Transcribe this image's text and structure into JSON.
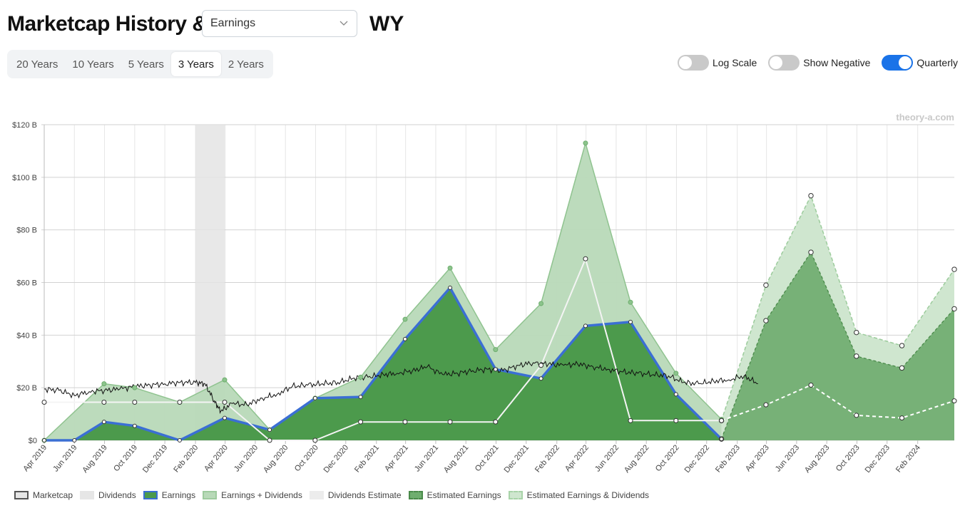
{
  "header": {
    "title": "Marketcap History &",
    "dropdown_value": "Earnings",
    "ticker": "WY"
  },
  "range_buttons": [
    {
      "label": "20 Years",
      "active": false
    },
    {
      "label": "10 Years",
      "active": false
    },
    {
      "label": "5 Years",
      "active": false
    },
    {
      "label": "3 Years",
      "active": true
    },
    {
      "label": "2 Years",
      "active": false
    }
  ],
  "toggles": [
    {
      "label": "Log Scale",
      "on": false
    },
    {
      "label": "Show Negative",
      "on": false
    },
    {
      "label": "Quarterly",
      "on": true
    }
  ],
  "watermark": "theory-a.com",
  "legend": [
    {
      "label": "Marketcap",
      "fill": "#e6e6e6",
      "border": "#555555",
      "dashed": false
    },
    {
      "label": "Dividends",
      "fill": "#e6e6e6",
      "border": "#e6e6e6",
      "dashed": false
    },
    {
      "label": "Earnings",
      "fill": "#4c9a4c",
      "border": "#3b6fd4",
      "dashed": false
    },
    {
      "label": "Earnings + Dividends",
      "fill": "#b8d9b8",
      "border": "#9ecb9e",
      "dashed": false
    },
    {
      "label": "Dividends Estimate",
      "fill": "#ececec",
      "border": "#ececec",
      "dashed": false
    },
    {
      "label": "Estimated Earnings",
      "fill": "#6fae6f",
      "border": "#4a8a4a",
      "dashed": true
    },
    {
      "label": "Estimated Earnings & Dividends",
      "fill": "#cfe6cf",
      "border": "#a8d3a8",
      "dashed": true
    }
  ],
  "colors": {
    "earnings_fill": "#4c9a4c",
    "earnings_line": "#3b6fd4",
    "ed_fill": "#b8d9b8",
    "ed_line": "#8fc38f",
    "est_fill": "#72ae72",
    "est_ed_fill": "#cfe6cf",
    "marketcap_line": "#111111",
    "dividend_line": "#f4f4f4",
    "grid": "#dddddd"
  },
  "chart_data": {
    "type": "area",
    "y_ticks": [
      "$0",
      "$20 B",
      "$40 B",
      "$60 B",
      "$80 B",
      "$100 B",
      "$120 B"
    ],
    "ylim": [
      0,
      120
    ],
    "xlim": [
      "2019-04-01",
      "2024-04-15"
    ],
    "x_tick_labels": [
      {
        "date": "2019-04-01",
        "label": "Apr 2019"
      },
      {
        "date": "2019-06-01",
        "label": "Jun 2019"
      },
      {
        "date": "2019-08-01",
        "label": "Aug 2019"
      },
      {
        "date": "2019-10-01",
        "label": "Oct 2019"
      },
      {
        "date": "2019-12-01",
        "label": "Dec 2019"
      },
      {
        "date": "2020-02-01",
        "label": "Feb 2020"
      },
      {
        "date": "2020-04-01",
        "label": "Apr 2020"
      },
      {
        "date": "2020-06-01",
        "label": "Jun 2020"
      },
      {
        "date": "2020-08-01",
        "label": "Aug 2020"
      },
      {
        "date": "2020-10-01",
        "label": "Oct 2020"
      },
      {
        "date": "2020-12-01",
        "label": "Dec 2020"
      },
      {
        "date": "2021-02-01",
        "label": "Feb 2021"
      },
      {
        "date": "2021-04-01",
        "label": "Apr 2021"
      },
      {
        "date": "2021-06-01",
        "label": "Jun 2021"
      },
      {
        "date": "2021-08-01",
        "label": "Aug 2021"
      },
      {
        "date": "2021-10-01",
        "label": "Oct 2021"
      },
      {
        "date": "2021-12-01",
        "label": "Dec 2021"
      },
      {
        "date": "2022-02-01",
        "label": "Feb 2022"
      },
      {
        "date": "2022-04-01",
        "label": "Apr 2022"
      },
      {
        "date": "2022-06-01",
        "label": "Jun 2022"
      },
      {
        "date": "2022-08-01",
        "label": "Aug 2022"
      },
      {
        "date": "2022-10-01",
        "label": "Oct 2022"
      },
      {
        "date": "2022-12-01",
        "label": "Dec 2022"
      },
      {
        "date": "2023-02-01",
        "label": "Feb 2023"
      },
      {
        "date": "2023-04-01",
        "label": "Apr 2023"
      },
      {
        "date": "2023-06-01",
        "label": "Jun 2023"
      },
      {
        "date": "2023-08-01",
        "label": "Aug 2023"
      },
      {
        "date": "2023-10-01",
        "label": "Oct 2023"
      },
      {
        "date": "2023-12-01",
        "label": "Dec 2023"
      },
      {
        "date": "2024-02-01",
        "label": "Feb 2024"
      }
    ],
    "shaded_period": [
      "2020-02-01",
      "2020-03-31"
    ],
    "earnings": {
      "x": [
        "2019-04-01",
        "2019-06-01",
        "2019-07-31",
        "2019-10-01",
        "2019-12-31",
        "2020-03-31",
        "2020-06-30",
        "2020-09-30",
        "2020-12-31",
        "2021-03-31",
        "2021-06-30",
        "2021-09-30",
        "2021-12-31",
        "2022-03-31",
        "2022-06-30",
        "2022-09-30",
        "2022-12-31"
      ],
      "y": [
        0,
        0,
        7,
        5.5,
        0,
        8.5,
        4,
        16,
        16.5,
        38.5,
        58,
        27,
        23.5,
        43.5,
        45,
        17.5,
        0.5
      ]
    },
    "earnings_plus_dividends": {
      "x": [
        "2019-04-01",
        "2019-07-31",
        "2019-10-01",
        "2019-12-31",
        "2020-03-31",
        "2020-06-30",
        "2020-09-30",
        "2020-12-31",
        "2021-03-31",
        "2021-06-30",
        "2021-09-30",
        "2021-12-31",
        "2022-03-31",
        "2022-06-30",
        "2022-09-30",
        "2022-12-31"
      ],
      "y": [
        0,
        21.5,
        20,
        14.5,
        23,
        4,
        16,
        24,
        46,
        65.5,
        34.5,
        52,
        113,
        52.5,
        25.5,
        8
      ]
    },
    "dividends": {
      "x": [
        "2019-04-01",
        "2019-07-31",
        "2019-10-01",
        "2019-12-31",
        "2020-03-31",
        "2020-06-30",
        "2020-09-30",
        "2020-12-31",
        "2021-03-31",
        "2021-06-30",
        "2021-09-30",
        "2021-12-31",
        "2022-03-31",
        "2022-06-30",
        "2022-09-30",
        "2022-12-31"
      ],
      "y": [
        14.5,
        14.5,
        14.5,
        14.5,
        14.5,
        0,
        0,
        7,
        7,
        7,
        7,
        28.5,
        69,
        7.5,
        7.5,
        7.5
      ]
    },
    "estimated_earnings": {
      "x": [
        "2022-12-31",
        "2023-03-31",
        "2023-06-30",
        "2023-09-30",
        "2023-12-31",
        "2024-04-15"
      ],
      "y": [
        0.5,
        45.5,
        71.5,
        32,
        27.5,
        50
      ]
    },
    "estimated_earnings_and_dividends": {
      "x": [
        "2022-12-31",
        "2023-03-31",
        "2023-06-30",
        "2023-09-30",
        "2023-12-31",
        "2024-04-15"
      ],
      "y": [
        7.5,
        59,
        93,
        41,
        36,
        65
      ]
    },
    "dividends_estimate": {
      "x": [
        "2022-12-31",
        "2023-03-31",
        "2023-06-30",
        "2023-09-30",
        "2023-12-31",
        "2024-04-15"
      ],
      "y": [
        7.5,
        13.5,
        21,
        9.5,
        8.5,
        15
      ]
    },
    "marketcap": {
      "x": [
        "2019-04-01",
        "2019-05-01",
        "2019-06-01",
        "2019-07-01",
        "2019-08-01",
        "2019-09-01",
        "2019-10-01",
        "2019-11-01",
        "2019-12-01",
        "2020-01-01",
        "2020-02-01",
        "2020-02-20",
        "2020-03-10",
        "2020-03-23",
        "2020-04-15",
        "2020-05-15",
        "2020-06-15",
        "2020-07-15",
        "2020-08-15",
        "2020-09-15",
        "2020-10-15",
        "2020-11-15",
        "2020-12-15",
        "2021-01-15",
        "2021-02-15",
        "2021-03-15",
        "2021-04-15",
        "2021-05-15",
        "2021-06-15",
        "2021-07-15",
        "2021-08-15",
        "2021-09-15",
        "2021-10-15",
        "2021-11-15",
        "2021-12-15",
        "2022-01-15",
        "2022-02-15",
        "2022-03-15",
        "2022-04-15",
        "2022-05-15",
        "2022-06-15",
        "2022-07-15",
        "2022-08-15",
        "2022-09-15",
        "2022-10-15",
        "2022-11-15",
        "2022-12-15",
        "2023-01-15",
        "2023-02-15",
        "2023-03-15"
      ],
      "y": [
        19.5,
        19,
        17,
        18.5,
        19,
        19.5,
        20.5,
        21,
        21.5,
        22,
        22,
        21.5,
        15,
        11,
        14,
        13.5,
        16,
        17.5,
        20.5,
        21,
        21.5,
        22,
        23.5,
        24,
        25,
        25.5,
        26.5,
        28,
        25,
        25.5,
        26.5,
        27,
        26.5,
        28.5,
        29.5,
        29,
        28.5,
        29,
        28,
        27,
        26,
        25.5,
        25,
        24.5,
        22,
        21.5,
        22.5,
        23,
        24.5,
        21.5
      ]
    }
  }
}
